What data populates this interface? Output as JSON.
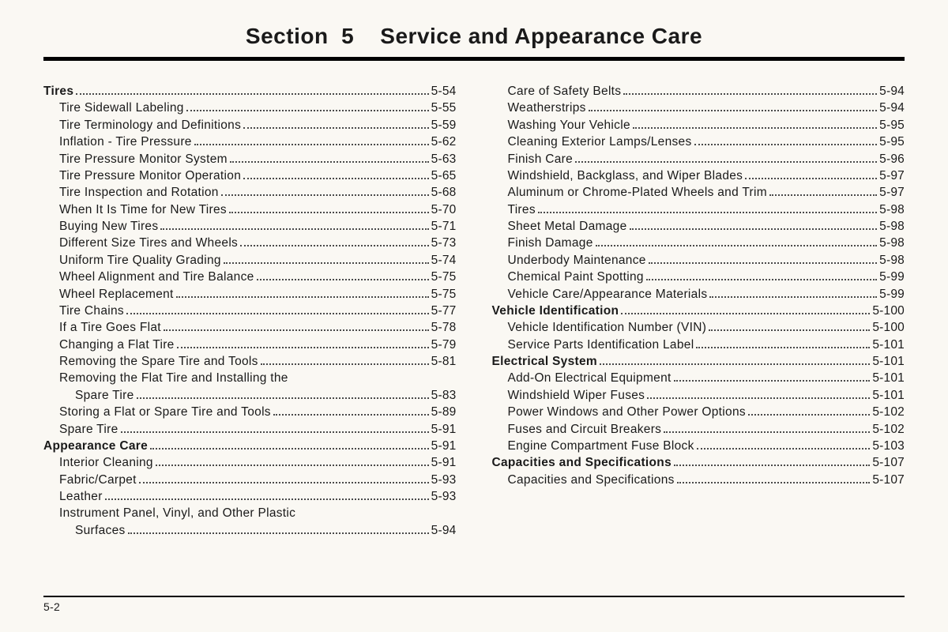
{
  "title": "Section  5    Service and Appearance Care",
  "page_number": "5-2",
  "left": [
    {
      "t": "h",
      "label": "Tires",
      "page": "5-54"
    },
    {
      "t": "s",
      "label": "Tire Sidewall Labeling",
      "page": "5-55"
    },
    {
      "t": "s",
      "label": "Tire Terminology and Definitions",
      "page": "5-59"
    },
    {
      "t": "s",
      "label": "Inflation - Tire Pressure",
      "page": "5-62"
    },
    {
      "t": "s",
      "label": "Tire Pressure Monitor System",
      "page": "5-63"
    },
    {
      "t": "s",
      "label": "Tire Pressure Monitor Operation",
      "page": "5-65"
    },
    {
      "t": "s",
      "label": "Tire Inspection and Rotation",
      "page": "5-68"
    },
    {
      "t": "s",
      "label": "When It Is Time for New Tires",
      "page": "5-70"
    },
    {
      "t": "s",
      "label": "Buying New Tires",
      "page": "5-71"
    },
    {
      "t": "s",
      "label": "Different Size Tires and Wheels",
      "page": "5-73"
    },
    {
      "t": "s",
      "label": "Uniform Tire Quality Grading",
      "page": "5-74"
    },
    {
      "t": "s",
      "label": "Wheel Alignment and Tire Balance",
      "page": "5-75"
    },
    {
      "t": "s",
      "label": "Wheel Replacement",
      "page": "5-75"
    },
    {
      "t": "s",
      "label": "Tire Chains",
      "page": "5-77"
    },
    {
      "t": "s",
      "label": "If a Tire Goes Flat",
      "page": "5-78"
    },
    {
      "t": "s",
      "label": "Changing a Flat Tire",
      "page": "5-79"
    },
    {
      "t": "s",
      "label": "Removing the Spare Tire and Tools",
      "page": "5-81"
    },
    {
      "t": "s",
      "label": "Removing the Flat Tire and Installing the",
      "cont": true
    },
    {
      "t": "s2",
      "label": "Spare Tire",
      "page": "5-83"
    },
    {
      "t": "s",
      "label": "Storing a Flat or Spare Tire and Tools",
      "page": "5-89"
    },
    {
      "t": "s",
      "label": "Spare Tire",
      "page": "5-91"
    },
    {
      "t": "h",
      "label": "Appearance Care",
      "page": "5-91"
    },
    {
      "t": "s",
      "label": "Interior Cleaning",
      "page": "5-91"
    },
    {
      "t": "s",
      "label": "Fabric/Carpet",
      "page": "5-93"
    },
    {
      "t": "s",
      "label": "Leather",
      "page": "5-93"
    },
    {
      "t": "s",
      "label": "Instrument Panel, Vinyl, and Other Plastic",
      "cont": true
    },
    {
      "t": "s2",
      "label": "Surfaces",
      "page": "5-94"
    }
  ],
  "right": [
    {
      "t": "s",
      "label": "Care of Safety Belts",
      "page": "5-94"
    },
    {
      "t": "s",
      "label": "Weatherstrips",
      "page": "5-94"
    },
    {
      "t": "s",
      "label": "Washing Your Vehicle",
      "page": "5-95"
    },
    {
      "t": "s",
      "label": "Cleaning Exterior Lamps/Lenses",
      "page": "5-95"
    },
    {
      "t": "s",
      "label": "Finish Care",
      "page": "5-96"
    },
    {
      "t": "s",
      "label": "Windshield, Backglass, and Wiper Blades",
      "page": "5-97"
    },
    {
      "t": "s",
      "label": "Aluminum or Chrome-Plated Wheels and Trim",
      "page": "5-97"
    },
    {
      "t": "s",
      "label": "Tires",
      "page": "5-98"
    },
    {
      "t": "s",
      "label": "Sheet Metal Damage",
      "page": "5-98"
    },
    {
      "t": "s",
      "label": "Finish Damage",
      "page": "5-98"
    },
    {
      "t": "s",
      "label": "Underbody Maintenance",
      "page": "5-98"
    },
    {
      "t": "s",
      "label": "Chemical Paint Spotting",
      "page": "5-99"
    },
    {
      "t": "s",
      "label": "Vehicle Care/Appearance Materials",
      "page": "5-99"
    },
    {
      "t": "h",
      "label": "Vehicle Identification",
      "page": "5-100"
    },
    {
      "t": "s",
      "label": "Vehicle Identification Number (VIN)",
      "page": "5-100"
    },
    {
      "t": "s",
      "label": "Service Parts Identification Label",
      "page": "5-101"
    },
    {
      "t": "h",
      "label": "Electrical System",
      "page": "5-101"
    },
    {
      "t": "s",
      "label": "Add-On Electrical Equipment",
      "page": "5-101"
    },
    {
      "t": "s",
      "label": "Windshield Wiper Fuses",
      "page": "5-101"
    },
    {
      "t": "s",
      "label": "Power Windows and Other Power Options",
      "page": "5-102"
    },
    {
      "t": "s",
      "label": "Fuses and Circuit Breakers",
      "page": "5-102"
    },
    {
      "t": "s",
      "label": "Engine Compartment Fuse Block",
      "page": "5-103"
    },
    {
      "t": "h",
      "label": "Capacities and Specifications",
      "page": "5-107"
    },
    {
      "t": "s",
      "label": "Capacities and Specifications",
      "page": "5-107"
    }
  ]
}
